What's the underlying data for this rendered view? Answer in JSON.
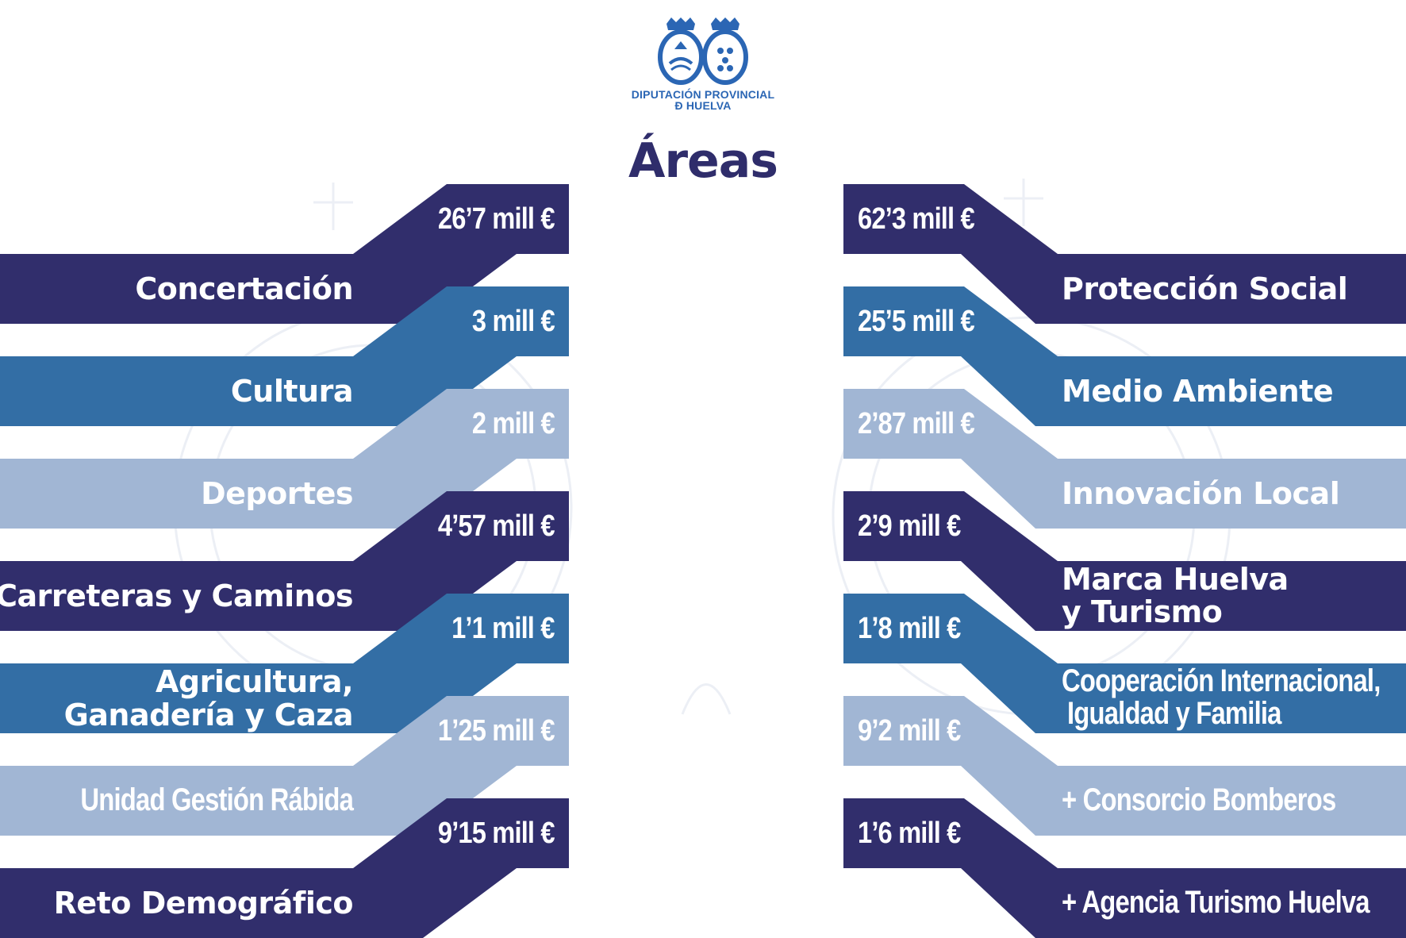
{
  "header": {
    "logo_line1": "DIPUTACIÓN PROVINCIAL",
    "logo_line2": "Ð HUELVA",
    "title": "Áreas"
  },
  "colors": {
    "navy": "#312e6c",
    "blue": "#336ea5",
    "light": "#a1b6d4",
    "title": "#2f2d6b",
    "logo_blue": "#2b66b4"
  },
  "areas_left": [
    {
      "name": "Concertación",
      "amount": "26’7 mill €",
      "shade": "navy"
    },
    {
      "name": "Cultura",
      "amount": "3 mill €",
      "shade": "blue"
    },
    {
      "name": "Deportes",
      "amount": "2 mill €",
      "shade": "light"
    },
    {
      "name": "Carreteras y Caminos",
      "amount": "4’57 mill €",
      "shade": "navy"
    },
    {
      "name_line1": "Agricultura,",
      "name_line2": "Ganadería y Caza",
      "amount": "1’1 mill €",
      "shade": "blue"
    },
    {
      "name": "Unidad Gestión Rábida",
      "amount": "1’25 mill €",
      "shade": "light"
    },
    {
      "name": "Reto Demográfico",
      "amount": "9’15 mill €",
      "shade": "navy"
    }
  ],
  "areas_right": [
    {
      "name": "Protección Social",
      "amount": "62’3 mill €",
      "shade": "navy"
    },
    {
      "name": "Medio Ambiente",
      "amount": "25’5 mill €",
      "shade": "blue"
    },
    {
      "name": "Innovación Local",
      "amount": "2’87 mill €",
      "shade": "light"
    },
    {
      "name_line1": "Marca Huelva",
      "name_line2": "y Turismo",
      "amount": "2’9 mill €",
      "shade": "navy"
    },
    {
      "name_line1": "Cooperación Internacional,",
      "name_line2": "Igualdad y Familia",
      "amount": "1’8 mill €",
      "shade": "blue"
    },
    {
      "name": "+ Consorcio Bomberos",
      "amount": "9’2 mill €",
      "shade": "light"
    },
    {
      "name": "+ Agencia Turismo Huelva",
      "amount": "1’6 mill €",
      "shade": "navy"
    }
  ]
}
